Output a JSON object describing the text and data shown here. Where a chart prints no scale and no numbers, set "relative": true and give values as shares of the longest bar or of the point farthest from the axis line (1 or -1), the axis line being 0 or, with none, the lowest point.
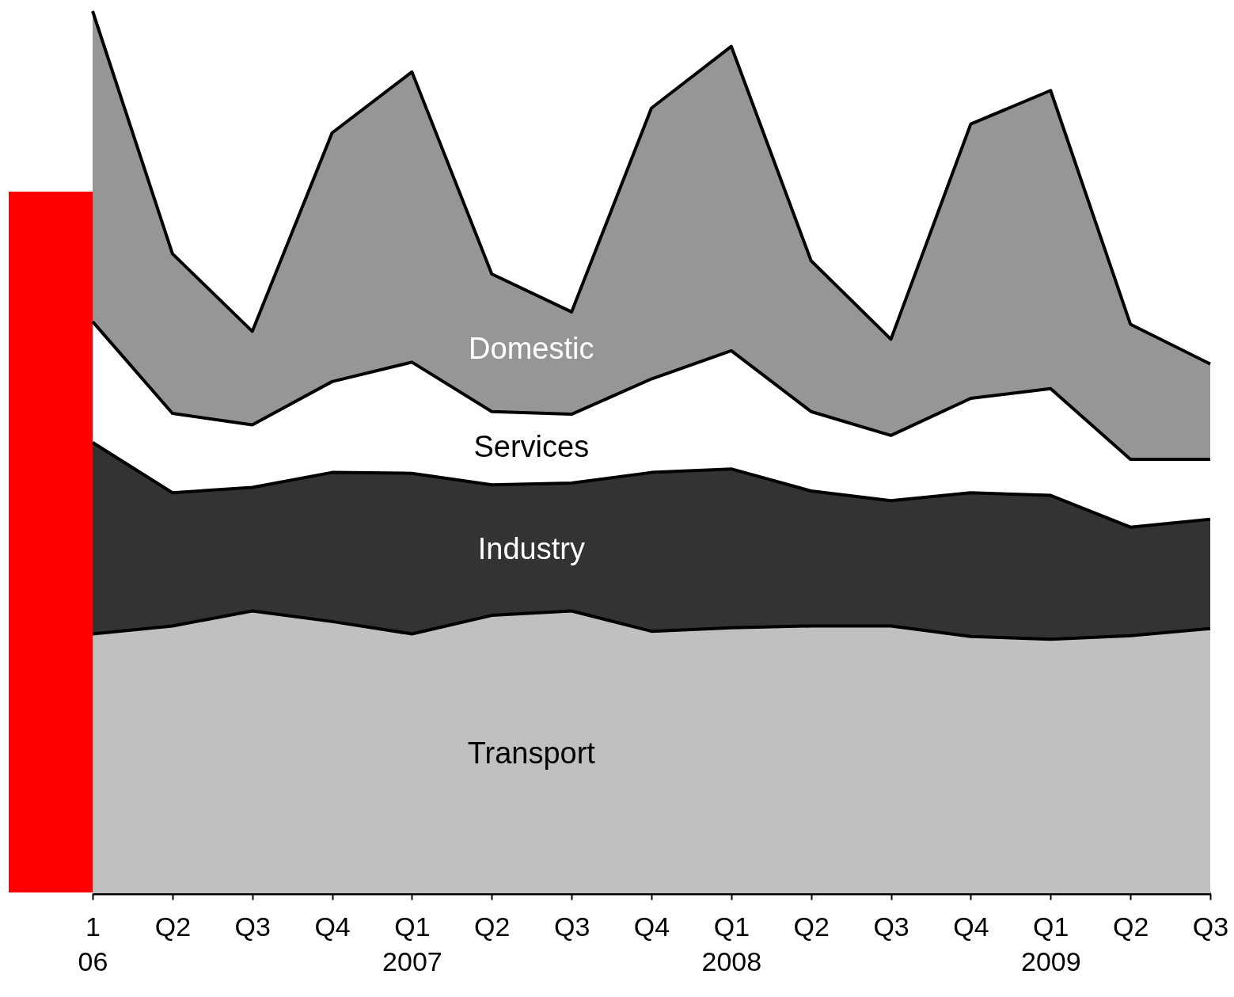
{
  "chart_data": {
    "type": "area",
    "stacked": true,
    "relative": true,
    "categories": [
      "1\n06",
      "Q2",
      "Q3",
      "Q4",
      "Q1\n2007",
      "Q2",
      "Q3",
      "Q4",
      "Q1\n2008",
      "Q2",
      "Q3",
      "Q4",
      "Q1\n2009",
      "Q2",
      "Q3"
    ],
    "series": [
      {
        "name": "Transport",
        "color": "#c0c0c0",
        "values": [
          0.294,
          0.303,
          0.32,
          0.308,
          0.294,
          0.315,
          0.32,
          0.297,
          0.301,
          0.303,
          0.303,
          0.291,
          0.288,
          0.292,
          0.3
        ]
      },
      {
        "name": "Industry",
        "color": "#333333",
        "values": [
          0.217,
          0.151,
          0.14,
          0.169,
          0.182,
          0.148,
          0.145,
          0.18,
          0.18,
          0.153,
          0.142,
          0.163,
          0.163,
          0.123,
          0.124
        ]
      },
      {
        "name": "Services",
        "color": "#ffffff",
        "values": [
          0.137,
          0.09,
          0.071,
          0.103,
          0.126,
          0.083,
          0.078,
          0.106,
          0.134,
          0.09,
          0.074,
          0.107,
          0.121,
          0.077,
          0.068
        ]
      },
      {
        "name": "Domestic",
        "color": "#969696",
        "values": [
          0.352,
          0.181,
          0.106,
          0.282,
          0.329,
          0.156,
          0.116,
          0.307,
          0.345,
          0.171,
          0.109,
          0.311,
          0.338,
          0.153,
          0.108
        ]
      }
    ]
  }
}
